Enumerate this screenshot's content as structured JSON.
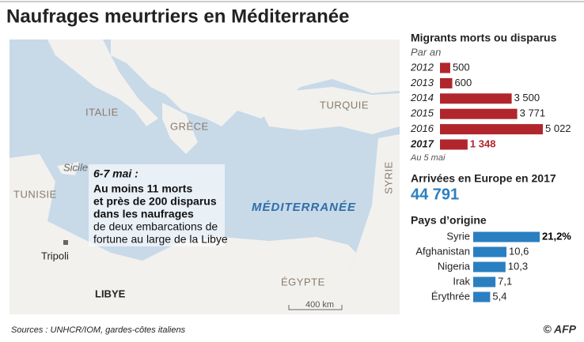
{
  "title": "Naufrages meurtriers en Méditerranée",
  "map": {
    "countries": [
      "ITALIE",
      "GRÈCE",
      "TURQUIE",
      "TUNISIE",
      "SYRIE",
      "LIBYE",
      "ÉGYPTE"
    ],
    "island": "Sicile",
    "sea": "MÉDITERRANÉE",
    "city": "Tripoli",
    "scale": "400 km",
    "annotation": {
      "date": "6-7 mai :",
      "bold_lines": [
        "Au moins 11 morts",
        "et près de 200 disparus",
        "dans les naufrages"
      ],
      "lines": [
        "de deux embarcations de",
        "fortune au large de la Libye"
      ]
    }
  },
  "chart_data": [
    {
      "type": "bar",
      "title": "Migrants morts ou disparus",
      "subtitle": "Par an",
      "note": "Au 5 mai",
      "categories": [
        "2012",
        "2013",
        "2014",
        "2015",
        "2016",
        "2017"
      ],
      "values": [
        500,
        600,
        3500,
        3771,
        5022,
        1348
      ],
      "value_labels": [
        "500",
        "600",
        "3 500",
        "3 771",
        "5 022",
        "1 348"
      ],
      "color": "#b1262d",
      "highlight": "2017",
      "highlight_color": "#b1262d"
    },
    {
      "type": "bar",
      "title": "Pays d’origine",
      "categories": [
        "Syrie",
        "Afghanistan",
        "Nigeria",
        "Irak",
        "Érythrée"
      ],
      "values": [
        21.2,
        10.6,
        10.3,
        7.1,
        5.4
      ],
      "value_labels": [
        "21,2%",
        "10,6",
        "10,3",
        "7,1",
        "5,4"
      ],
      "color": "#2a7fc1",
      "highlight": "Syrie",
      "highlight_color": "#000000"
    }
  ],
  "arrivals": {
    "title": "Arrivées en Europe en 2017",
    "value": "44 791"
  },
  "source": "Sources : UNHCR/IOM, gardes-côtes italiens",
  "credit": "© AFP"
}
